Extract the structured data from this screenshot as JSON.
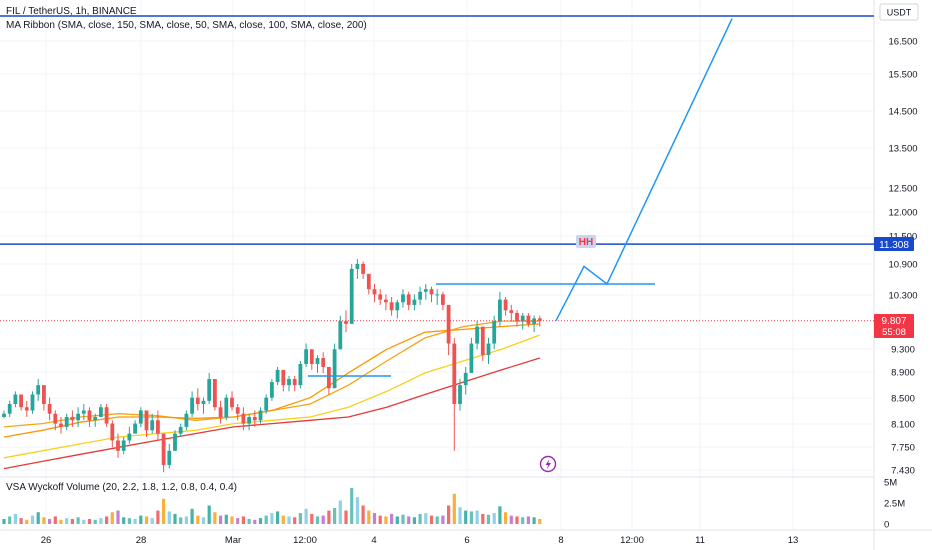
{
  "header": {
    "symbol": "FIL / TetherUS, 1h, BINANCE",
    "indicator": "MA Ribbon (SMA, close, 150, SMA, close, 50, SMA, close, 100, SMA, close, 200)"
  },
  "currency": "USDT",
  "volume_title": "VSA Wyckoff Volume (20, 2.2, 1.8, 1.2, 0.8, 0.4, 0.4)",
  "price_axis": {
    "ticks": [
      "16.500",
      "15.500",
      "14.500",
      "13.500",
      "12.500",
      "12.000",
      "11.500",
      "10.900",
      "10.300",
      "9.300",
      "8.900",
      "8.500",
      "8.100",
      "7.750",
      "7.430"
    ],
    "ticks_y": [
      41,
      74,
      111,
      148,
      188,
      212,
      236,
      264,
      295,
      349,
      372,
      398,
      424,
      447,
      470
    ]
  },
  "volume_axis": {
    "ticks": [
      "5M",
      "2.5M",
      "0"
    ],
    "ticks_y": [
      482,
      503,
      524
    ]
  },
  "time_axis": {
    "ticks": [
      "26",
      "28",
      "Mar",
      "12:00",
      "4",
      "6",
      "8",
      "12:00",
      "11",
      "13"
    ],
    "ticks_x": [
      46,
      141,
      233,
      305,
      374,
      467,
      561,
      632,
      700,
      793
    ]
  },
  "badges": {
    "level": {
      "value": "11.308",
      "color": "#1848cc"
    },
    "last_price": {
      "value": "9.807",
      "countdown": "55:08",
      "color": "#f23645"
    }
  },
  "annotation_label": "HH",
  "colors": {
    "up": "#26a69a",
    "down": "#ef5350",
    "drawing": "#2196f3",
    "hline": "#1848cc"
  },
  "chart_data": {
    "type": "candlestick",
    "symbol": "FIL/USDT",
    "interval": "1h",
    "exchange": "BINANCE",
    "y_scale": "log",
    "ylim": [
      7.35,
      17.7
    ],
    "last_price": 9.807,
    "horizontal_level": 11.308,
    "candles_hlc": [
      [
        8.3,
        8.18,
        8.25
      ],
      [
        8.45,
        8.2,
        8.4
      ],
      [
        8.6,
        8.35,
        8.55
      ],
      [
        8.55,
        8.3,
        8.35
      ],
      [
        8.45,
        8.2,
        8.3
      ],
      [
        8.6,
        8.25,
        8.55
      ],
      [
        8.8,
        8.45,
        8.7
      ],
      [
        8.7,
        8.3,
        8.4
      ],
      [
        8.5,
        8.15,
        8.25
      ],
      [
        8.3,
        8.0,
        8.1
      ],
      [
        8.2,
        7.95,
        8.05
      ],
      [
        8.25,
        8.0,
        8.2
      ],
      [
        8.3,
        8.05,
        8.15
      ],
      [
        8.35,
        8.05,
        8.25
      ],
      [
        8.4,
        8.15,
        8.3
      ],
      [
        8.35,
        8.05,
        8.15
      ],
      [
        8.25,
        8.05,
        8.2
      ],
      [
        8.4,
        8.2,
        8.35
      ],
      [
        8.4,
        8.05,
        8.1
      ],
      [
        8.15,
        7.75,
        7.85
      ],
      [
        7.95,
        7.6,
        7.7
      ],
      [
        7.9,
        7.65,
        7.85
      ],
      [
        8.05,
        7.8,
        7.95
      ],
      [
        8.15,
        7.95,
        8.1
      ],
      [
        8.35,
        8.05,
        8.3
      ],
      [
        8.3,
        7.9,
        8.0
      ],
      [
        8.25,
        7.95,
        8.15
      ],
      [
        8.3,
        7.85,
        7.95
      ],
      [
        7.95,
        7.4,
        7.5
      ],
      [
        7.8,
        7.45,
        7.7
      ],
      [
        8.0,
        7.7,
        7.95
      ],
      [
        8.1,
        7.9,
        8.05
      ],
      [
        8.3,
        8.0,
        8.25
      ],
      [
        8.6,
        8.2,
        8.5
      ],
      [
        8.65,
        8.3,
        8.4
      ],
      [
        8.5,
        8.25,
        8.45
      ],
      [
        8.9,
        8.4,
        8.8
      ],
      [
        8.7,
        8.3,
        8.35
      ],
      [
        8.45,
        8.1,
        8.2
      ],
      [
        8.55,
        8.15,
        8.5
      ],
      [
        8.6,
        8.3,
        8.35
      ],
      [
        8.4,
        8.15,
        8.25
      ],
      [
        8.35,
        8.0,
        8.1
      ],
      [
        8.25,
        8.0,
        8.2
      ],
      [
        8.3,
        8.05,
        8.15
      ],
      [
        8.35,
        8.1,
        8.3
      ],
      [
        8.55,
        8.25,
        8.5
      ],
      [
        8.8,
        8.45,
        8.75
      ],
      [
        9.0,
        8.7,
        8.95
      ],
      [
        8.95,
        8.6,
        8.7
      ],
      [
        8.85,
        8.6,
        8.8
      ],
      [
        8.85,
        8.6,
        8.7
      ],
      [
        9.1,
        8.65,
        9.05
      ],
      [
        9.4,
        9.0,
        9.3
      ],
      [
        9.3,
        8.95,
        9.05
      ],
      [
        9.2,
        8.9,
        9.15
      ],
      [
        9.25,
        8.9,
        9.0
      ],
      [
        8.95,
        8.55,
        8.65
      ],
      [
        9.4,
        8.9,
        9.3
      ],
      [
        9.9,
        9.3,
        9.8
      ],
      [
        10.0,
        9.6,
        9.75
      ],
      [
        10.9,
        10.4,
        10.8
      ],
      [
        11.0,
        10.6,
        10.9
      ],
      [
        10.95,
        10.6,
        10.7
      ],
      [
        10.7,
        10.3,
        10.4
      ],
      [
        10.5,
        10.15,
        10.3
      ],
      [
        10.4,
        10.1,
        10.2
      ],
      [
        10.3,
        10.0,
        10.15
      ],
      [
        10.25,
        9.9,
        10.0
      ],
      [
        10.2,
        9.85,
        10.15
      ],
      [
        10.4,
        10.05,
        10.3
      ],
      [
        10.35,
        10.0,
        10.1
      ],
      [
        10.3,
        10.0,
        10.2
      ],
      [
        10.45,
        10.1,
        10.35
      ],
      [
        10.5,
        10.2,
        10.4
      ],
      [
        10.45,
        10.15,
        10.3
      ],
      [
        10.4,
        10.1,
        10.3
      ],
      [
        10.35,
        10.0,
        10.1
      ],
      [
        10.0,
        9.2,
        9.4
      ],
      [
        9.5,
        7.7,
        8.4
      ],
      [
        8.8,
        8.3,
        8.7
      ],
      [
        9.0,
        8.55,
        8.9
      ],
      [
        9.5,
        8.9,
        9.4
      ],
      [
        9.8,
        9.3,
        9.7
      ],
      [
        9.6,
        9.1,
        9.2
      ],
      [
        9.5,
        9.05,
        9.4
      ],
      [
        9.9,
        9.3,
        9.8
      ],
      [
        10.35,
        9.7,
        10.2
      ],
      [
        10.25,
        9.9,
        10.0
      ],
      [
        10.1,
        9.8,
        9.95
      ],
      [
        10.0,
        9.7,
        9.8
      ],
      [
        9.95,
        9.65,
        9.9
      ],
      [
        9.95,
        9.7,
        9.75
      ],
      [
        9.9,
        9.6,
        9.85
      ],
      [
        9.9,
        9.7,
        9.807
      ]
    ],
    "moving_averages": [
      {
        "color": "#f7a21b",
        "values": [
          8.05,
          8.1,
          8.2,
          8.25,
          8.22,
          8.15,
          8.2,
          8.3,
          8.4,
          8.7,
          9.1,
          9.5,
          9.7,
          9.8,
          9.8
        ]
      },
      {
        "color": "#ff9800",
        "values": [
          7.9,
          8.0,
          8.12,
          8.2,
          8.2,
          8.18,
          8.2,
          8.3,
          8.5,
          8.9,
          9.3,
          9.6,
          9.65,
          9.7,
          9.75
        ]
      },
      {
        "color": "#f5d21b",
        "values": [
          7.6,
          7.7,
          7.8,
          7.9,
          7.95,
          8.0,
          8.1,
          8.15,
          8.2,
          8.35,
          8.6,
          8.9,
          9.1,
          9.3,
          9.55
        ]
      },
      {
        "color": "#e53935",
        "values": [
          7.45,
          7.55,
          7.65,
          7.75,
          7.85,
          7.95,
          8.05,
          8.1,
          8.15,
          8.2,
          8.35,
          8.55,
          8.75,
          8.95,
          9.15
        ]
      }
    ],
    "volume": [
      0.6,
      0.9,
      1.2,
      0.7,
      0.5,
      1.0,
      1.4,
      0.8,
      0.6,
      0.9,
      0.5,
      0.7,
      0.6,
      0.8,
      0.5,
      0.6,
      0.5,
      0.7,
      0.9,
      1.4,
      1.6,
      0.8,
      0.7,
      0.6,
      1.0,
      0.9,
      0.7,
      1.6,
      3.0,
      1.5,
      1.2,
      0.8,
      0.9,
      1.8,
      1.0,
      0.8,
      2.2,
      1.4,
      1.0,
      1.1,
      0.9,
      0.7,
      0.9,
      0.6,
      0.5,
      0.7,
      1.0,
      1.3,
      1.5,
      1.0,
      0.9,
      0.8,
      1.3,
      1.8,
      1.2,
      0.9,
      1.0,
      1.6,
      1.9,
      2.8,
      1.6,
      4.3,
      3.2,
      2.2,
      1.6,
      1.3,
      1.0,
      0.9,
      1.2,
      0.9,
      1.1,
      0.9,
      0.8,
      1.2,
      1.3,
      1.0,
      0.9,
      1.0,
      2.2,
      3.6,
      2.0,
      1.6,
      1.5,
      1.6,
      1.2,
      1.1,
      1.3,
      2.1,
      1.4,
      1.0,
      0.9,
      0.8,
      0.9,
      0.8,
      0.6
    ],
    "volume_ylim": [
      0,
      5.2
    ],
    "volume_unit": "M",
    "drawings": {
      "projected_path": [
        [
          9.807,
          9.9
        ],
        [
          10.85,
          10.85
        ],
        [
          10.5,
          10.45
        ],
        [
          17.2,
          17.2
        ]
      ],
      "resistance_line": 10.5,
      "support_line": 8.85
    }
  }
}
